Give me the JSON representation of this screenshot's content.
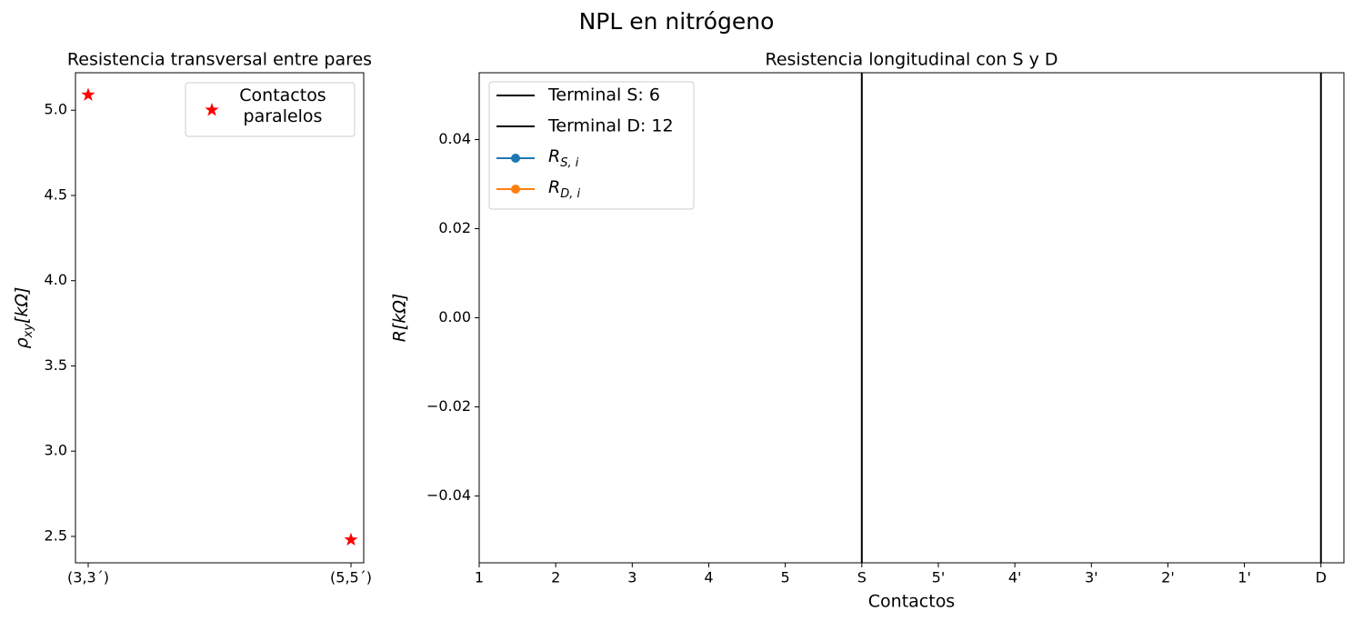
{
  "title": "NPL en nitrógeno",
  "chart_data": [
    {
      "type": "scatter",
      "title": "Resistencia transversal entre pares",
      "ylabel": {
        "base": "ρ",
        "sub": "xy",
        "rest": "[kΩ]"
      },
      "categories": [
        "(3,3´)",
        "(5,5´)"
      ],
      "series": [
        {
          "name": "Contactos paralelos",
          "color": "#ff0000",
          "marker": "star",
          "values": [
            5.09,
            2.48
          ]
        }
      ],
      "ylim": [
        2.345,
        5.22
      ],
      "yticks": [
        2.5,
        {
          "value": 3,
          "label": "3.0"
        },
        3.5,
        {
          "value": 4,
          "label": "4.0"
        },
        4.5,
        {
          "value": 5,
          "label": "5.0"
        }
      ],
      "legend": "upper right",
      "grid": false
    },
    {
      "type": "line",
      "title": "Resistencia longitudinal con S y D",
      "xlabel": "Contactos",
      "ylabel": "R[kΩ]",
      "xlim": [
        1,
        12.3
      ],
      "xticks": [
        1,
        2,
        3,
        4,
        5,
        {
          "value": 6,
          "label": "S"
        },
        {
          "value": 7,
          "label": "5'"
        },
        {
          "value": 8,
          "label": "4'"
        },
        {
          "value": 9,
          "label": "3'"
        },
        {
          "value": 10,
          "label": "2'"
        },
        {
          "value": 11,
          "label": "1'"
        },
        {
          "value": 12,
          "label": "D"
        }
      ],
      "ylim": [
        -0.055,
        0.055
      ],
      "yticks": [
        {
          "value": -0.04,
          "label": "−0.04"
        },
        {
          "value": -0.02,
          "label": "−0.02"
        },
        {
          "value": 0,
          "label": "0.00"
        },
        {
          "value": 0.02,
          "label": "0.02"
        },
        {
          "value": 0.04,
          "label": "0.04"
        }
      ],
      "vlines": [
        {
          "name": "Terminal S: 6",
          "x": 6,
          "color": "#000000"
        },
        {
          "name": "Terminal D: 12",
          "x": 12,
          "color": "#000000"
        }
      ],
      "series": [
        {
          "name": {
            "base": "R",
            "sub": "S, i"
          },
          "color": "#1f77b4",
          "x": [],
          "values": []
        },
        {
          "name": {
            "base": "R",
            "sub": "D, i"
          },
          "color": "#ff7f0e",
          "x": [],
          "values": []
        }
      ],
      "legend": "upper left",
      "grid": false
    }
  ]
}
